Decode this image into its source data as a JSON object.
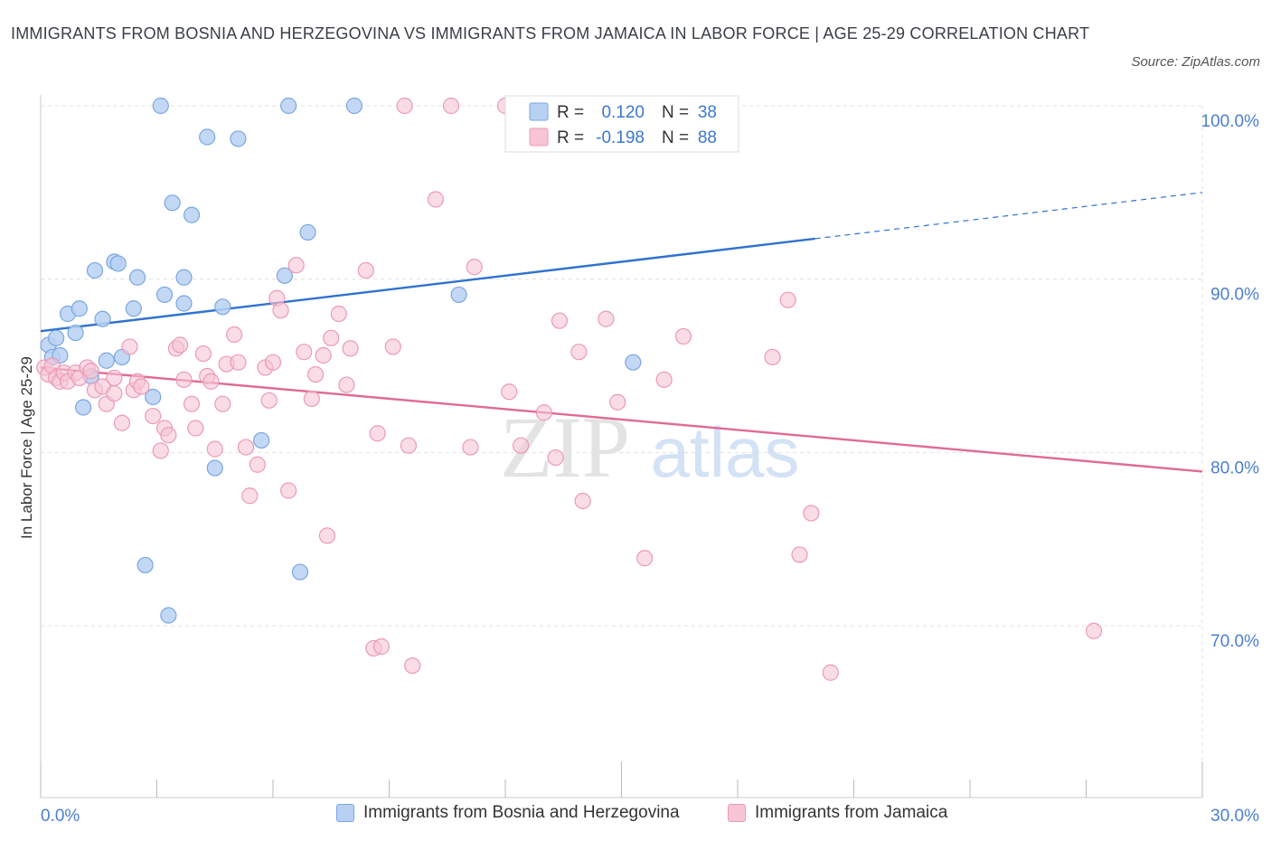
{
  "header": {
    "title": "IMMIGRANTS FROM BOSNIA AND HERZEGOVINA VS IMMIGRANTS FROM JAMAICA IN LABOR FORCE | AGE 25-29 CORRELATION CHART",
    "source": "Source: ZipAtlas.com"
  },
  "watermark": {
    "zip": "ZIP",
    "atlas": "atlas"
  },
  "colors": {
    "blue_fill": "#b8d1f3",
    "blue_stroke": "#7aa6e0",
    "blue_line": "#2f72d0",
    "pink_fill": "#f7c5d5",
    "pink_stroke": "#eb9ab4",
    "pink_line": "#e06a93",
    "tick_text": "#4a7fd0"
  },
  "chart_data": {
    "type": "scatter",
    "xlabel": "",
    "ylabel": "In Labor Force | Age 25-29",
    "xlim": [
      0,
      30
    ],
    "ylim": [
      60,
      100
    ],
    "x_tick_labels": [
      "0.0%",
      "30.0%"
    ],
    "y_ticks": [
      100,
      90,
      80,
      70
    ],
    "y_tick_labels": [
      "100.0%",
      "90.0%",
      "80.0%",
      "70.0%"
    ],
    "grid": true,
    "legend_position": "top-center",
    "stats": [
      {
        "r_label": "R =",
        "r": "0.120",
        "n_label": "N =",
        "n": "38"
      },
      {
        "r_label": "R =",
        "r": "-0.198",
        "n_label": "N =",
        "n": "88"
      }
    ],
    "series": [
      {
        "name": "Immigrants from Bosnia and Herzegovina",
        "trend": {
          "x0": 0,
          "y0": 87.0,
          "x1": 30,
          "y1": 95.0,
          "solid_until_x": 20
        },
        "points": [
          [
            0.2,
            86.2
          ],
          [
            0.3,
            85.5
          ],
          [
            0.4,
            86.6
          ],
          [
            0.5,
            85.6
          ],
          [
            0.7,
            88.0
          ],
          [
            0.9,
            86.9
          ],
          [
            1.0,
            88.3
          ],
          [
            1.1,
            82.6
          ],
          [
            1.3,
            84.4
          ],
          [
            1.4,
            90.5
          ],
          [
            1.6,
            87.7
          ],
          [
            1.7,
            85.3
          ],
          [
            1.9,
            91.0
          ],
          [
            2.0,
            90.9
          ],
          [
            2.1,
            85.5
          ],
          [
            2.4,
            88.3
          ],
          [
            2.5,
            90.1
          ],
          [
            2.7,
            73.5
          ],
          [
            2.9,
            83.2
          ],
          [
            3.1,
            100.0
          ],
          [
            3.2,
            89.1
          ],
          [
            3.3,
            70.6
          ],
          [
            3.4,
            94.4
          ],
          [
            3.7,
            88.6
          ],
          [
            3.7,
            90.1
          ],
          [
            3.9,
            93.7
          ],
          [
            4.3,
            98.2
          ],
          [
            4.5,
            79.1
          ],
          [
            4.7,
            88.4
          ],
          [
            5.1,
            98.1
          ],
          [
            5.7,
            80.7
          ],
          [
            6.3,
            90.2
          ],
          [
            6.4,
            100.0
          ],
          [
            6.7,
            73.1
          ],
          [
            6.9,
            92.7
          ],
          [
            8.1,
            100.0
          ],
          [
            10.8,
            89.1
          ],
          [
            15.3,
            85.2
          ]
        ]
      },
      {
        "name": "Immigrants from Jamaica",
        "trend": {
          "x0": 0,
          "y0": 84.9,
          "x1": 30,
          "y1": 78.9,
          "solid_until_x": 30
        },
        "points": [
          [
            0.1,
            84.9
          ],
          [
            0.2,
            84.5
          ],
          [
            0.3,
            85.0
          ],
          [
            0.4,
            84.3
          ],
          [
            0.5,
            84.1
          ],
          [
            0.6,
            84.6
          ],
          [
            0.7,
            84.1
          ],
          [
            0.9,
            84.6
          ],
          [
            1.0,
            84.3
          ],
          [
            1.2,
            84.9
          ],
          [
            1.3,
            84.7
          ],
          [
            1.4,
            83.6
          ],
          [
            1.6,
            83.8
          ],
          [
            1.7,
            82.8
          ],
          [
            1.9,
            84.3
          ],
          [
            1.9,
            83.4
          ],
          [
            2.1,
            81.7
          ],
          [
            2.3,
            86.1
          ],
          [
            2.4,
            83.6
          ],
          [
            2.5,
            84.1
          ],
          [
            2.6,
            83.8
          ],
          [
            2.9,
            82.1
          ],
          [
            3.1,
            80.1
          ],
          [
            3.2,
            81.4
          ],
          [
            3.3,
            81.0
          ],
          [
            3.5,
            86.0
          ],
          [
            3.6,
            86.2
          ],
          [
            3.7,
            84.2
          ],
          [
            3.9,
            82.8
          ],
          [
            4.0,
            81.4
          ],
          [
            4.2,
            85.7
          ],
          [
            4.3,
            84.4
          ],
          [
            4.4,
            84.1
          ],
          [
            4.5,
            80.2
          ],
          [
            4.7,
            82.8
          ],
          [
            4.8,
            85.1
          ],
          [
            5.0,
            86.8
          ],
          [
            5.1,
            85.2
          ],
          [
            5.3,
            80.3
          ],
          [
            5.4,
            77.5
          ],
          [
            5.6,
            79.3
          ],
          [
            5.8,
            84.9
          ],
          [
            5.9,
            83.0
          ],
          [
            6.0,
            85.2
          ],
          [
            6.1,
            88.9
          ],
          [
            6.2,
            88.2
          ],
          [
            6.4,
            77.8
          ],
          [
            6.6,
            90.8
          ],
          [
            6.8,
            85.8
          ],
          [
            7.0,
            83.1
          ],
          [
            7.1,
            84.5
          ],
          [
            7.3,
            85.6
          ],
          [
            7.4,
            75.2
          ],
          [
            7.5,
            86.6
          ],
          [
            7.7,
            88.0
          ],
          [
            7.9,
            83.9
          ],
          [
            8.0,
            86.0
          ],
          [
            8.4,
            90.5
          ],
          [
            8.6,
            68.7
          ],
          [
            8.7,
            81.1
          ],
          [
            8.8,
            68.8
          ],
          [
            9.1,
            86.1
          ],
          [
            9.4,
            100.0
          ],
          [
            9.5,
            80.4
          ],
          [
            9.6,
            67.7
          ],
          [
            10.2,
            94.6
          ],
          [
            10.6,
            100.0
          ],
          [
            11.1,
            80.3
          ],
          [
            11.2,
            90.7
          ],
          [
            12.0,
            100.0
          ],
          [
            12.1,
            83.5
          ],
          [
            12.4,
            80.4
          ],
          [
            13.0,
            82.3
          ],
          [
            13.3,
            79.7
          ],
          [
            13.4,
            87.6
          ],
          [
            13.9,
            85.8
          ],
          [
            14.0,
            77.2
          ],
          [
            14.6,
            87.7
          ],
          [
            14.9,
            82.9
          ],
          [
            15.6,
            73.9
          ],
          [
            16.1,
            84.2
          ],
          [
            16.6,
            86.7
          ],
          [
            18.9,
            85.5
          ],
          [
            19.3,
            88.8
          ],
          [
            19.6,
            74.1
          ],
          [
            19.9,
            76.5
          ],
          [
            20.4,
            67.3
          ],
          [
            27.2,
            69.7
          ]
        ]
      }
    ]
  }
}
